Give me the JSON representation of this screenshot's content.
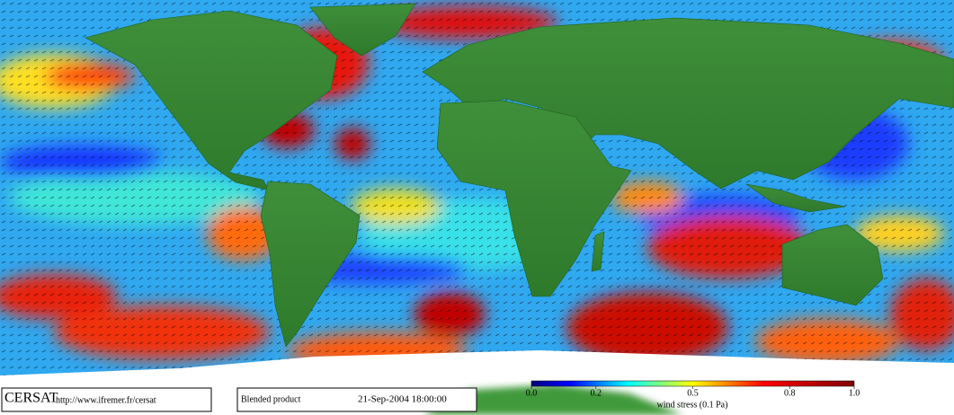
{
  "footer": {
    "logo": "CERSAT",
    "url": "http://www.ifremer.fr/cersat",
    "product": "Blended product",
    "date": "21-Sep-2004 18:00:00"
  },
  "colorbar": {
    "label": "wind stress (0.1 Pa)",
    "range": [
      0,
      1
    ],
    "ticks": [
      {
        "value": 0,
        "label": "0.0"
      },
      0.2,
      0.5,
      0.8,
      {
        "value": 1,
        "label": "1.0"
      }
    ]
  }
}
